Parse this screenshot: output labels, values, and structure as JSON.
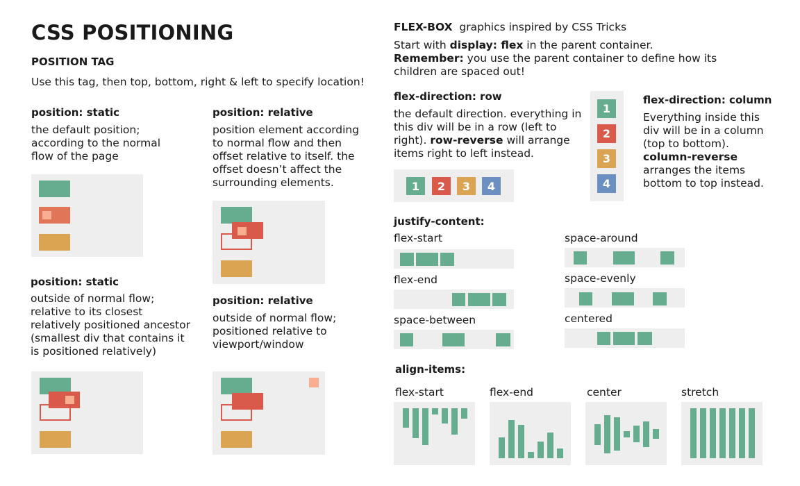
{
  "left": {
    "title": "CSS POSITIONING",
    "subtitle": "POSITION TAG",
    "intro": "Use this tag, then top, bottom, right & left to specify location!",
    "static": {
      "heading": "position: static",
      "lines": [
        "the default position;",
        "according to the normal",
        "flow of the page"
      ]
    },
    "relative": {
      "heading": "position: relative",
      "lines": [
        "position element according",
        "to normal flow and then",
        "offset relative to itself. the",
        "offset doesn’t affect the",
        "surrounding elements."
      ]
    },
    "absolute": {
      "heading": "position: static",
      "lines": [
        "outside of normal flow;",
        "relative to its closest",
        "relatively positioned ancestor",
        "(smallest div that contains it",
        "is positioned relatively)"
      ]
    },
    "fixed": {
      "heading": "position: relative",
      "lines": [
        "outside of normal flow;",
        "positioned relative to",
        "viewport/window"
      ]
    }
  },
  "right": {
    "title": "FLEX-BOX",
    "title_note": "graphics inspired by CSS Tricks",
    "intro1_pre": "Start with ",
    "intro1_bold": "display: flex",
    "intro1_post": " in the parent container.",
    "intro2_bold": "Remember:",
    "intro2_post": " you use the parent container to define how its",
    "intro3": "children are spaced out!",
    "row": {
      "heading": "flex-direction: row",
      "line1": "the default direction. everything in",
      "line2": "this div will be in a row (left to",
      "line3_pre": "right). ",
      "line3_bold": "row-reverse",
      "line3_post": " will arrange",
      "line4": "items right to left instead.",
      "items": [
        "1",
        "2",
        "3",
        "4"
      ]
    },
    "column": {
      "heading": "flex-direction: column",
      "line1": "Everything inside this",
      "line2": "div will be in a column",
      "line3": "(top to bottom).",
      "line4_bold": "column-reverse",
      "line5": "arranges the items",
      "line6": "bottom to top instead.",
      "items": [
        "1",
        "2",
        "3",
        "4"
      ]
    },
    "justify": {
      "heading": "justify-content:",
      "labels": {
        "flex_start": "flex-start",
        "flex_end": "flex-end",
        "space_between": "space-between",
        "space_around": "space-around",
        "space_evenly": "space-evenly",
        "centered": "centered"
      }
    },
    "align": {
      "heading": "align-items:",
      "labels": {
        "flex_start": "flex-start",
        "flex_end": "flex-end",
        "center": "center",
        "stretch": "stretch"
      }
    }
  },
  "colors": {
    "green": "#66ad8f",
    "red": "#d9594b",
    "coral": "#e07657",
    "yellow": "#dba453",
    "peach": "#f9ad91",
    "blue": "#6b8fc1",
    "panel": "#eeeeee"
  }
}
